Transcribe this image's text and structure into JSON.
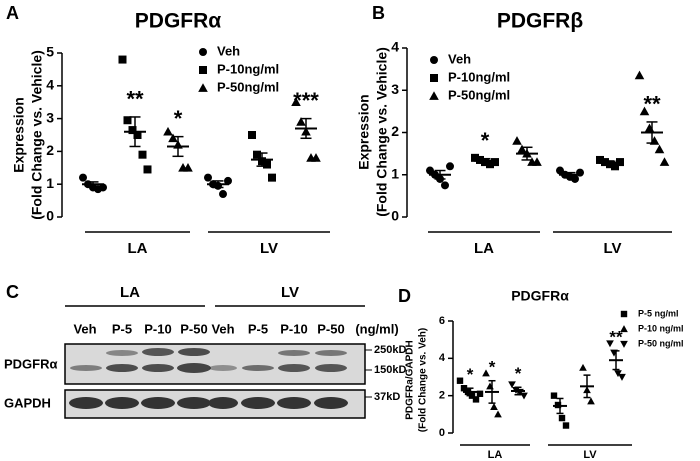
{
  "chart_data": [
    {
      "type": "dot_plot",
      "panel": "A",
      "title": "PDGFRα",
      "ylabel": [
        "Expression",
        "(Fold Change vs. Vehicle)"
      ],
      "groups": [
        "LA",
        "LV"
      ],
      "ylim": [
        0,
        5
      ],
      "yticks": [
        0,
        1,
        2,
        3,
        4,
        5
      ],
      "color": "#000000",
      "series": [
        {
          "name": "Veh",
          "marker": "circle",
          "groups": [
            {
              "values": [
                1.2,
                1.0,
                0.9,
                0.85,
                0.9
              ],
              "mean": 1.0,
              "sem": 0.07
            },
            {
              "values": [
                1.2,
                1.0,
                0.95,
                0.7,
                1.1
              ],
              "mean": 1.0,
              "sem": 0.1
            }
          ]
        },
        {
          "name": "P-10ng/ml",
          "marker": "square",
          "groups": [
            {
              "values": [
                4.8,
                2.95,
                2.65,
                2.5,
                1.9,
                1.45
              ],
              "mean": 2.6,
              "sem": 0.45,
              "annotation": "**"
            },
            {
              "values": [
                2.5,
                1.9,
                1.7,
                1.6,
                1.2
              ],
              "mean": 1.75,
              "sem": 0.2
            }
          ]
        },
        {
          "name": "P-50ng/ml",
          "marker": "triangle",
          "groups": [
            {
              "values": [
                2.6,
                2.4,
                2.2,
                1.5,
                1.5
              ],
              "mean": 2.15,
              "sem": 0.3,
              "annotation": "*"
            },
            {
              "values": [
                3.5,
                2.9,
                2.6,
                1.8,
                1.8
              ],
              "mean": 2.7,
              "sem": 0.3,
              "annotation": "***"
            }
          ]
        }
      ]
    },
    {
      "type": "dot_plot",
      "panel": "B",
      "title": "PDGFRβ",
      "ylabel": [
        "Expression",
        "(Fold Change vs. Vehicle)"
      ],
      "groups": [
        "LA",
        "LV"
      ],
      "ylim": [
        0,
        4
      ],
      "yticks": [
        0,
        1,
        2,
        3,
        4
      ],
      "color": "#000000",
      "series": [
        {
          "name": "Veh",
          "marker": "circle",
          "groups": [
            {
              "values": [
                1.1,
                1.0,
                0.9,
                0.75,
                1.2
              ],
              "mean": 1.0,
              "sem": 0.1
            },
            {
              "values": [
                1.1,
                1.0,
                0.95,
                0.9,
                1.05
              ],
              "mean": 1.0,
              "sem": 0.05
            }
          ]
        },
        {
          "name": "P-10ng/ml",
          "marker": "square",
          "groups": [
            {
              "values": [
                1.4,
                1.35,
                1.3,
                1.25,
                1.3
              ],
              "mean": 1.33,
              "sem": 0.05,
              "annotation": "*"
            },
            {
              "values": [
                1.35,
                1.3,
                1.25,
                1.2,
                1.3
              ],
              "mean": 1.28,
              "sem": 0.04
            }
          ]
        },
        {
          "name": "P-50ng/ml",
          "marker": "triangle",
          "groups": [
            {
              "values": [
                1.8,
                1.6,
                1.5,
                1.3,
                1.3
              ],
              "mean": 1.5,
              "sem": 0.15
            },
            {
              "values": [
                3.35,
                2.5,
                2.1,
                1.8,
                1.6,
                1.3
              ],
              "mean": 2.0,
              "sem": 0.25,
              "annotation": "**"
            }
          ]
        }
      ]
    },
    {
      "type": "dot_plot",
      "panel": "D",
      "title": "PDGFRα",
      "ylabel": [
        "PDGFRa/GAPDH",
        "(Fold Change vs. Veh)"
      ],
      "groups": [
        "LA",
        "LV"
      ],
      "ylim": [
        0,
        6
      ],
      "yticks": [
        0,
        2,
        4,
        6
      ],
      "color": "#000000",
      "series": [
        {
          "name": "P-5 ng/ml",
          "marker": "square",
          "groups": [
            {
              "values": [
                2.8,
                2.4,
                2.2,
                2.0,
                1.8,
                2.1
              ],
              "mean": 2.2,
              "sem": 0.2,
              "annotation": "*"
            },
            {
              "values": [
                2.0,
                1.5,
                0.8,
                0.4
              ],
              "mean": 1.45,
              "sem": 0.4
            }
          ]
        },
        {
          "name": "P-10 ng/ml",
          "marker": "triangle",
          "groups": [
            {
              "values": [
                3.2,
                2.5,
                1.4,
                1.0
              ],
              "mean": 2.2,
              "sem": 0.6,
              "annotation": "*"
            },
            {
              "values": [
                3.5,
                2.3,
                1.7
              ],
              "mean": 2.5,
              "sem": 0.6
            }
          ]
        },
        {
          "name": "P-50 ng/ml",
          "marker": "triangle-down",
          "groups": [
            {
              "values": [
                2.6,
                2.3,
                2.2,
                2.0
              ],
              "mean": 2.25,
              "sem": 0.2,
              "annotation": "*"
            },
            {
              "values": [
                4.8,
                4.3,
                3.2,
                3.0
              ],
              "mean": 3.9,
              "sem": 0.5,
              "annotation": "**"
            }
          ]
        }
      ]
    }
  ],
  "blot": {
    "panel": "C",
    "groups": [
      "LA",
      "LV"
    ],
    "lanes": [
      "Veh",
      "P-5",
      "P-10",
      "P-50",
      "Veh",
      "P-5",
      "P-10",
      "P-50"
    ],
    "unit": "(ng/ml)",
    "rows": [
      "PDGFRα",
      "GAPDH"
    ],
    "size_markers": [
      "250kD",
      "150kD",
      "37kD"
    ]
  }
}
